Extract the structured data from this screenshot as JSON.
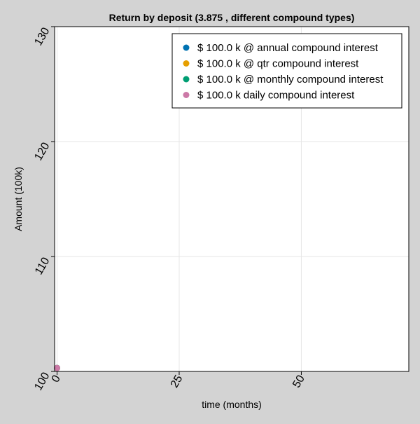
{
  "chart_data": {
    "type": "scatter",
    "title": "Return by deposit (3.875 , different compound types)",
    "xlabel": "time (months)",
    "ylabel": "Amount (100k)",
    "xlim": [
      -0.5,
      72
    ],
    "ylim": [
      100,
      130
    ],
    "xticks": [
      0,
      25,
      50
    ],
    "yticks": [
      100,
      110,
      120,
      130
    ],
    "grid": true,
    "legend_position": "top-right",
    "series": [
      {
        "name": "$ 100.0 k @ annual compound interest",
        "color": "#0072b2",
        "x": [
          0
        ],
        "y": [
          100.3
        ]
      },
      {
        "name": "$ 100.0 k @ qtr compound interest",
        "color": "#e69f00",
        "x": [
          0
        ],
        "y": [
          100.3
        ]
      },
      {
        "name": "$ 100.0 k @ monthly compound interest",
        "color": "#009e73",
        "x": [
          0
        ],
        "y": [
          100.3
        ]
      },
      {
        "name": "$ 100.0 k daily compound interest",
        "color": "#cc79a7",
        "x": [
          0
        ],
        "y": [
          100.3
        ]
      }
    ]
  }
}
